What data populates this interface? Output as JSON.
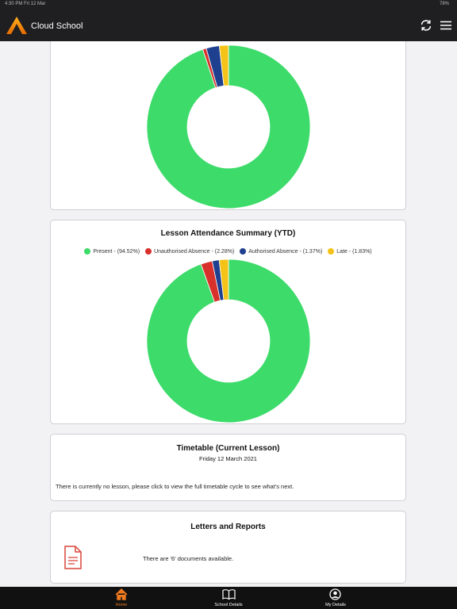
{
  "status_bar": {
    "time": "4:30 PM  Fri 12 Mar",
    "battery": "78%"
  },
  "header": {
    "title": "Cloud School"
  },
  "chart_data": [
    {
      "type": "doughnut",
      "values": [
        94.9,
        0.7,
        2.6,
        1.8
      ],
      "colors": [
        "#3ddb6a",
        "#d8302a",
        "#1f3f8f",
        "#f5c318"
      ]
    },
    {
      "type": "doughnut",
      "title": "Lesson Attendance Summary (YTD)",
      "categories": [
        "Present - (94.52%)",
        "Unauthorised Absence - (2.28%)",
        "Authorised Absence - (1.37%)",
        "Late - (1.83%)"
      ],
      "values": [
        94.52,
        2.28,
        1.37,
        1.83
      ],
      "colors": [
        "#3ddb6a",
        "#d8302a",
        "#1f3f8f",
        "#f5c318"
      ]
    }
  ],
  "timetable": {
    "title": "Timetable (Current Lesson)",
    "date": "Friday 12 March 2021",
    "message": "There is currently no lesson, please click to view the full timetable cycle to see what's next."
  },
  "letters": {
    "title": "Letters and Reports",
    "message": "There are '6' documents available."
  },
  "tab_bar": {
    "items": [
      "Home",
      "School Details",
      "My Details"
    ]
  }
}
